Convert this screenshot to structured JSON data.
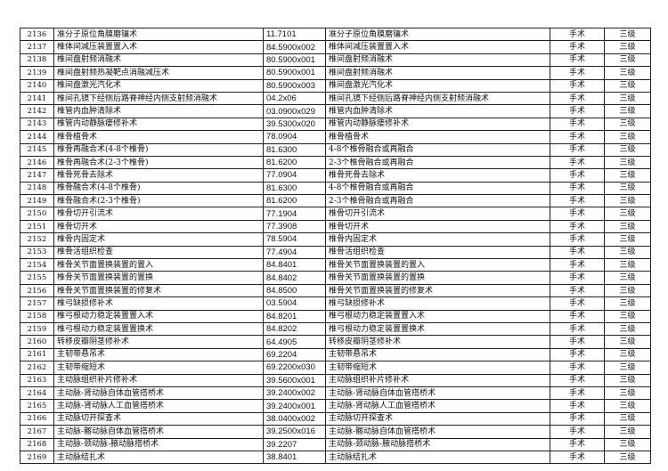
{
  "rows": [
    [
      "2136",
      "准分子原位角膜磨镶术",
      "11.7101",
      "准分子原位角膜磨镶术",
      "手术",
      "三级"
    ],
    [
      "2137",
      "椎体间减压装置置入术",
      "84.5900x002",
      "椎体间减压装置置入术",
      "手术",
      "三级"
    ],
    [
      "2138",
      "椎间盘射频消融术",
      "80.5900x001",
      "椎间盘射频消融术",
      "手术",
      "三级"
    ],
    [
      "2139",
      "椎间盘射频热凝靶点消融减压术",
      "80.5900x001",
      "椎间盘射频消融术",
      "手术",
      "三级"
    ],
    [
      "2140",
      "椎间盘激光汽化术",
      "80.5900x003",
      "椎间盘激光汽化术",
      "手术",
      "三级"
    ],
    [
      "2141",
      "椎间孔镜下经侧后路脊神经内侧支射频消融术",
      "04.2x06",
      "椎间孔镜下经侧后路脊神经内侧支射频消融术",
      "手术",
      "三级"
    ],
    [
      "2142",
      "椎管内血肿清除术",
      "03.0900x029",
      "椎管内血肿清除术",
      "手术",
      "三级"
    ],
    [
      "2143",
      "椎管内动静脉瘘修补术",
      "39.5300x020",
      "椎管内动静脉瘘修补术",
      "手术",
      "三级"
    ],
    [
      "2144",
      "椎骨植骨术",
      "78.0904",
      "椎骨植骨术",
      "手术",
      "三级"
    ],
    [
      "2145",
      "椎骨再融合术(4-8个椎骨)",
      "81.6300",
      "4-8个椎骨融合或再融合",
      "手术",
      "三级"
    ],
    [
      "2146",
      "椎骨再融合术(2-3个椎骨)",
      "81.6200",
      "2-3个椎骨融合或再融合",
      "手术",
      "三级"
    ],
    [
      "2147",
      "椎骨死骨去除术",
      "77.0904",
      "椎骨死骨去除术",
      "手术",
      "三级"
    ],
    [
      "2148",
      "椎骨融合术(4-8个椎骨)",
      "81.6300",
      "4-8个椎骨融合或再融合",
      "手术",
      "三级"
    ],
    [
      "2149",
      "椎骨融合术(2-3个椎骨)",
      "81.6200",
      "2-3个椎骨融合或再融合",
      "手术",
      "三级"
    ],
    [
      "2150",
      "椎骨切开引流术",
      "77.1904",
      "椎骨切开引流术",
      "手术",
      "三级"
    ],
    [
      "2151",
      "椎骨切开术",
      "77.3908",
      "椎骨切开术",
      "手术",
      "三级"
    ],
    [
      "2152",
      "椎骨内固定术",
      "78.5904",
      "椎骨内固定术",
      "手术",
      "三级"
    ],
    [
      "2153",
      "椎骨活组织检查",
      "77.4904",
      "椎骨活组织检查",
      "手术",
      "三级"
    ],
    [
      "2154",
      "椎骨关节面置换装置的置入",
      "84.8401",
      "椎骨关节面置换装置的置入",
      "手术",
      "三级"
    ],
    [
      "2155",
      "椎骨关节面置换装置的置换",
      "84.8402",
      "椎骨关节面置换装置的置换",
      "手术",
      "三级"
    ],
    [
      "2156",
      "椎骨关节面置换装置的修复术",
      "84.8500",
      "椎骨关节面置换装置的修复术",
      "手术",
      "三级"
    ],
    [
      "2157",
      "椎弓缺损修补术",
      "03.5904",
      "椎弓缺损修补术",
      "手术",
      "三级"
    ],
    [
      "2158",
      "椎弓根动力稳定装置置入术",
      "84.8201",
      "椎弓根动力稳定装置置入术",
      "手术",
      "三级"
    ],
    [
      "2159",
      "椎弓根动力稳定装置置换术",
      "84.8202",
      "椎弓根动力稳定装置置换术",
      "手术",
      "三级"
    ],
    [
      "2160",
      "转移皮瓣阴茎修补术",
      "64.4905",
      "转移皮瓣阴茎修补术",
      "手术",
      "三级"
    ],
    [
      "2161",
      "主韧带悬吊术",
      "69.2204",
      "主韧带悬吊术",
      "手术",
      "三级"
    ],
    [
      "2162",
      "主韧带缩短术",
      "69.2200x030",
      "主韧带缩短术",
      "手术",
      "三级"
    ],
    [
      "2163",
      "主动脉组织补片修补术",
      "39.5600x001",
      "主动脉组织补片修补术",
      "手术",
      "三级"
    ],
    [
      "2164",
      "主动脉-肾动脉自体血管搭桥术",
      "39.2400x002",
      "主动脉-肾动脉自体血管搭桥术",
      "手术",
      "三级"
    ],
    [
      "2165",
      "主动脉-肾动脉人工血管搭桥术",
      "39.2400x001",
      "主动脉-肾动脉人工血管搭桥术",
      "手术",
      "三级"
    ],
    [
      "2166",
      "主动脉切开探查术",
      "38.0400x002",
      "主动脉切开探查术",
      "手术",
      "三级"
    ],
    [
      "2167",
      "主动脉-髂动脉自体血管搭桥术",
      "39.2500x016",
      "主动脉-髂动脉自体血管搭桥术",
      "手术",
      "三级"
    ],
    [
      "2168",
      "主动脉-颈动脉-腋动脉搭桥术",
      "39.2207",
      "主动脉-颈动脉-腋动脉搭桥术",
      "手术",
      "三级"
    ],
    [
      "2169",
      "主动脉结扎术",
      "38.8401",
      "主动脉结扎术",
      "手术",
      "三级"
    ]
  ]
}
